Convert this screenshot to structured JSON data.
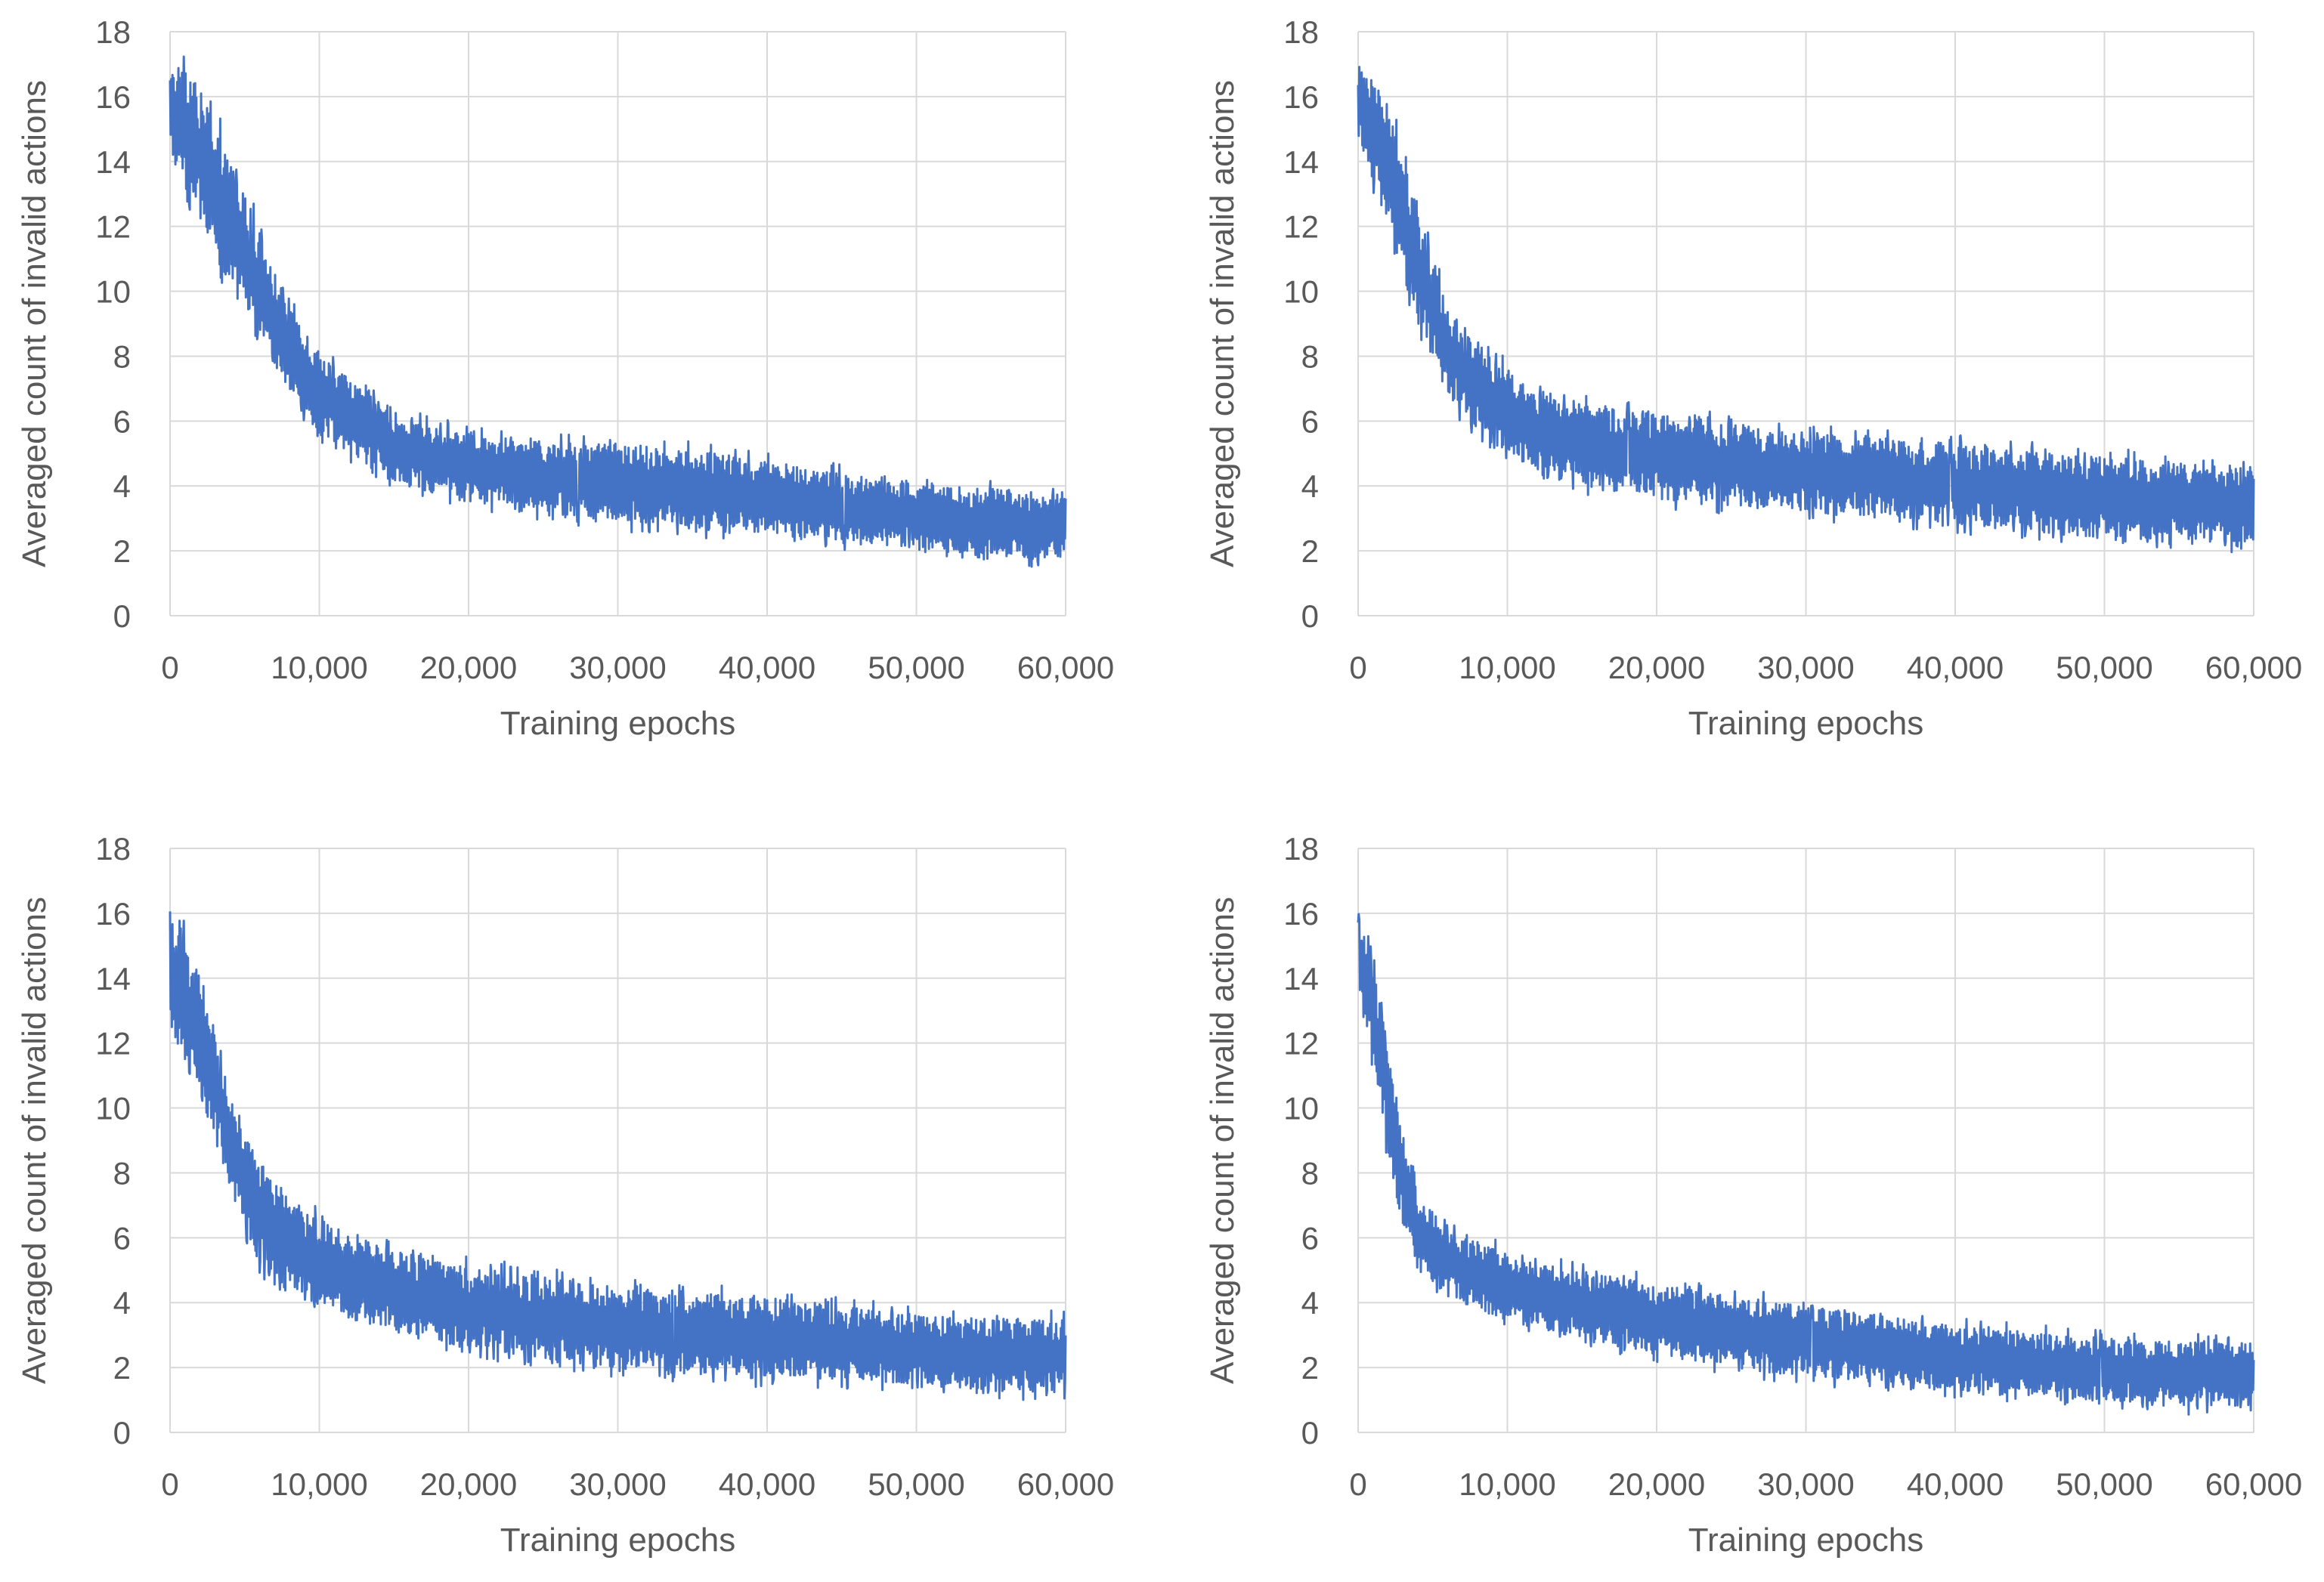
{
  "chart_data": [
    {
      "type": "line",
      "title": "",
      "xlabel": "Training epochs",
      "ylabel": "Averaged count of invalid actions",
      "xlim": [
        0,
        60000
      ],
      "ylim": [
        0,
        18
      ],
      "xticks": [
        0,
        10000,
        20000,
        30000,
        40000,
        50000,
        60000
      ],
      "xtick_labels": [
        "0",
        "10,000",
        "20,000",
        "30,000",
        "40,000",
        "50,000",
        "60,000"
      ],
      "yticks": [
        0,
        2,
        4,
        6,
        8,
        10,
        12,
        14,
        16,
        18
      ],
      "ytick_labels": [
        "0",
        "2",
        "4",
        "6",
        "8",
        "10",
        "12",
        "14",
        "16",
        "18"
      ],
      "grid": true,
      "legend": "none",
      "series": [
        {
          "name": "invalid actions",
          "color": "#4472C4",
          "band": true,
          "x": [
            0,
            2000,
            4000,
            6000,
            8000,
            10000,
            12000,
            15000,
            20000,
            25000,
            30000,
            35000,
            40000,
            45000,
            50000,
            55000,
            60000
          ],
          "lower": [
            14.2,
            12.2,
            10.0,
            8.6,
            6.9,
            5.6,
            5.0,
            4.1,
            3.5,
            3.2,
            2.9,
            2.7,
            2.5,
            2.3,
            2.1,
            1.7,
            1.8
          ],
          "upper": [
            17.3,
            16.2,
            14.2,
            11.8,
            9.5,
            8.1,
            7.3,
            6.2,
            5.6,
            5.4,
            5.3,
            5.1,
            4.8,
            4.4,
            4.1,
            3.9,
            3.8
          ]
        }
      ]
    },
    {
      "type": "line",
      "title": "",
      "xlabel": "Training epochs",
      "ylabel": "Averaged count of invalid actions",
      "xlim": [
        0,
        60000
      ],
      "ylim": [
        0,
        18
      ],
      "xticks": [
        0,
        10000,
        20000,
        30000,
        40000,
        50000,
        60000
      ],
      "xtick_labels": [
        "0",
        "10,000",
        "20,000",
        "30,000",
        "40,000",
        "50,000",
        "60,000"
      ],
      "yticks": [
        0,
        2,
        4,
        6,
        8,
        10,
        12,
        14,
        16,
        18
      ],
      "ytick_labels": [
        "0",
        "2",
        "4",
        "6",
        "8",
        "10",
        "12",
        "14",
        "16",
        "18"
      ],
      "grid": true,
      "legend": "none",
      "series": [
        {
          "name": "invalid actions",
          "color": "#4472C4",
          "band": true,
          "x": [
            0,
            2000,
            4000,
            6000,
            8000,
            10000,
            12000,
            15000,
            20000,
            25000,
            30000,
            35000,
            40000,
            45000,
            50000,
            55000,
            60000
          ],
          "lower": [
            14.8,
            12.0,
            9.0,
            6.8,
            5.6,
            5.0,
            4.5,
            4.0,
            3.6,
            3.4,
            3.2,
            3.0,
            2.8,
            2.6,
            2.4,
            2.3,
            2.2
          ],
          "upper": [
            17.1,
            15.8,
            12.5,
            9.5,
            8.2,
            7.6,
            6.9,
            6.5,
            6.2,
            5.9,
            5.6,
            5.5,
            5.3,
            5.1,
            4.9,
            4.7,
            4.6
          ]
        }
      ]
    },
    {
      "type": "line",
      "title": "",
      "xlabel": "Training epochs",
      "ylabel": "Averaged count of invalid actions",
      "xlim": [
        0,
        60000
      ],
      "ylim": [
        0,
        18
      ],
      "xticks": [
        0,
        10000,
        20000,
        30000,
        40000,
        50000,
        60000
      ],
      "xtick_labels": [
        "0",
        "10,000",
        "20,000",
        "30,000",
        "40,000",
        "50,000",
        "60,000"
      ],
      "yticks": [
        0,
        2,
        4,
        6,
        8,
        10,
        12,
        14,
        16,
        18
      ],
      "ytick_labels": [
        "0",
        "2",
        "4",
        "6",
        "8",
        "10",
        "12",
        "14",
        "16",
        "18"
      ],
      "grid": true,
      "legend": "none",
      "series": [
        {
          "name": "invalid actions",
          "color": "#4472C4",
          "band": true,
          "x": [
            0,
            2000,
            4000,
            6000,
            8000,
            10000,
            12000,
            15000,
            20000,
            25000,
            30000,
            35000,
            40000,
            45000,
            50000,
            55000,
            60000
          ],
          "lower": [
            12.5,
            10.5,
            7.5,
            5.2,
            4.3,
            3.9,
            3.5,
            3.1,
            2.6,
            2.2,
            2.0,
            1.8,
            1.7,
            1.6,
            1.5,
            1.3,
            1.2
          ],
          "upper": [
            16.3,
            14.2,
            10.5,
            8.4,
            7.2,
            6.6,
            6.1,
            5.6,
            5.1,
            4.8,
            4.5,
            4.3,
            4.2,
            3.9,
            3.6,
            3.5,
            3.5
          ]
        }
      ]
    },
    {
      "type": "line",
      "title": "",
      "xlabel": "Training epochs",
      "ylabel": "Averaged count of invalid actions",
      "xlim": [
        0,
        60000
      ],
      "ylim": [
        0,
        18
      ],
      "xticks": [
        0,
        10000,
        20000,
        30000,
        40000,
        50000,
        60000
      ],
      "xtick_labels": [
        "0",
        "10,000",
        "20,000",
        "30,000",
        "40,000",
        "50,000",
        "60,000"
      ],
      "yticks": [
        0,
        2,
        4,
        6,
        8,
        10,
        12,
        14,
        16,
        18
      ],
      "ytick_labels": [
        "0",
        "2",
        "4",
        "6",
        "8",
        "10",
        "12",
        "14",
        "16",
        "18"
      ],
      "grid": true,
      "legend": "none",
      "series": [
        {
          "name": "invalid actions",
          "color": "#4472C4",
          "band": true,
          "x": [
            0,
            1000,
            2000,
            3000,
            4000,
            6000,
            8000,
            10000,
            12000,
            15000,
            20000,
            25000,
            30000,
            35000,
            40000,
            45000,
            50000,
            55000,
            60000
          ],
          "lower": [
            13.8,
            11.0,
            8.5,
            6.3,
            5.0,
            4.2,
            3.8,
            3.4,
            3.2,
            2.9,
            2.4,
            2.0,
            1.7,
            1.5,
            1.3,
            1.1,
            1.0,
            0.8,
            0.8
          ],
          "upper": [
            16.0,
            14.5,
            11.8,
            9.2,
            7.3,
            6.3,
            5.9,
            5.6,
            5.2,
            5.0,
            4.6,
            4.2,
            3.9,
            3.6,
            3.3,
            3.1,
            2.9,
            2.8,
            2.8
          ]
        }
      ]
    }
  ]
}
